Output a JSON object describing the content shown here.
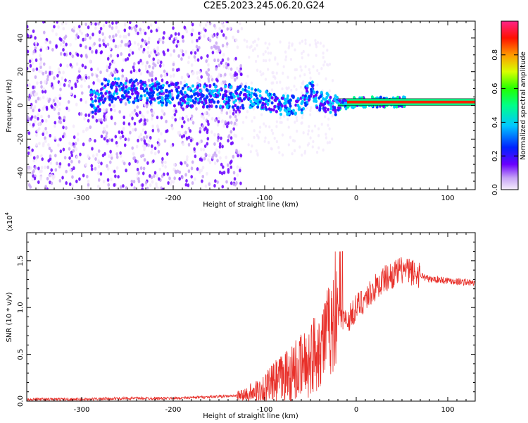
{
  "title": "C2E5.2023.245.06.20.G24",
  "colors": {
    "signal": "#e8302a",
    "spectral_low": "#6a00ff",
    "spectral_mid": "#00ff66",
    "spectral_high": "#ff0000"
  },
  "chart_data": [
    {
      "type": "heatmap",
      "title": "",
      "xlabel": "Height of straight line (km)",
      "ylabel": "Frequency (Hz)",
      "xlim": [
        -360,
        130
      ],
      "ylim": [
        -50,
        50
      ],
      "x_ticks": [
        -300,
        -200,
        -100,
        0,
        100
      ],
      "y_ticks": [
        -40,
        -20,
        0,
        20,
        40
      ],
      "ridge_track": [
        {
          "x": -280,
          "y": 8
        },
        {
          "x": -260,
          "y": 9
        },
        {
          "x": -220,
          "y": 7
        },
        {
          "x": -180,
          "y": 6
        },
        {
          "x": -150,
          "y": 6
        },
        {
          "x": -120,
          "y": 5
        },
        {
          "x": -100,
          "y": 3
        },
        {
          "x": -80,
          "y": 0
        },
        {
          "x": -60,
          "y": 1
        },
        {
          "x": -50,
          "y": 10
        },
        {
          "x": -40,
          "y": 2
        },
        {
          "x": -20,
          "y": 0
        },
        {
          "x": 0,
          "y": 2
        },
        {
          "x": 50,
          "y": 2
        },
        {
          "x": 130,
          "y": 2
        }
      ],
      "colorbar": {
        "label": "Normalized spectral amplitude",
        "range": [
          0,
          1
        ],
        "ticks": [
          "0.0",
          "0.2",
          "0.4",
          "0.6",
          "0.8"
        ]
      }
    },
    {
      "type": "line",
      "title": "",
      "xlabel": "Height of straight line (km)",
      "ylabel": "SNR (10 * v/v)",
      "y_multiplier": "(x10",
      "y_multiplier_exp": "4",
      "y_multiplier_close": ")",
      "xlim": [
        -360,
        130
      ],
      "ylim": [
        0,
        1.8
      ],
      "x_ticks": [
        -300,
        -200,
        -100,
        0,
        100
      ],
      "y_ticks": [
        "0.0",
        "0.5",
        "1.0",
        "1.5"
      ],
      "series": [
        {
          "x": [
            -360,
            -300,
            -250,
            -200,
            -150,
            -120,
            -100,
            -80,
            -60,
            -50,
            -40,
            -30,
            -20,
            -10,
            0,
            10,
            20,
            30,
            40,
            50,
            60,
            70,
            80,
            90,
            100,
            110,
            120,
            130
          ],
          "y": [
            0.02,
            0.02,
            0.03,
            0.03,
            0.05,
            0.06,
            0.12,
            0.25,
            0.35,
            0.45,
            0.6,
            0.75,
            0.9,
            0.85,
            1.0,
            1.1,
            1.2,
            1.3,
            1.35,
            1.4,
            1.38,
            1.35,
            1.3,
            1.3,
            1.29,
            1.28,
            1.27,
            1.26
          ]
        }
      ]
    }
  ]
}
